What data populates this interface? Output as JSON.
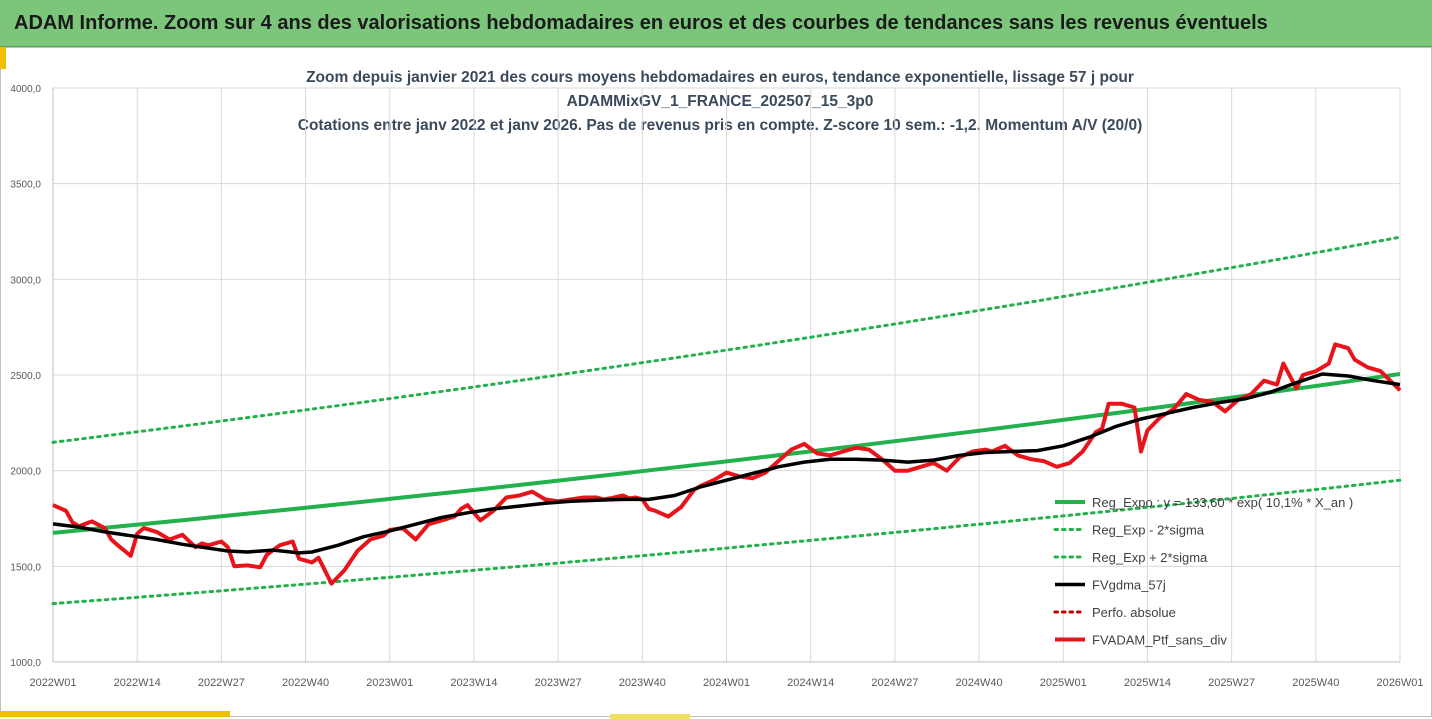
{
  "header": {
    "title": "ADAM Informe. Zoom sur 4 ans des valorisations hebdomadaires en euros et des courbes de tendances sans les revenus éventuels"
  },
  "chart_data": {
    "type": "line",
    "title_lines": [
      "Zoom depuis janvier 2021 des cours moyens hebdomadaires  en euros, tendance exponentielle, lissage 57 j pour",
      "ADAMMixGV_1_FRANCE_202507_15_3p0",
      "Cotations  entre janv 2022 et janv 2026. Pas de revenus pris en compte. Z-score 10 sem.: -1,2. Momentum A/V (20/0)"
    ],
    "ylim": [
      1000,
      4000
    ],
    "y_ticks": [
      "1000,0",
      "1500,0",
      "2000,0",
      "2500,0",
      "3000,0",
      "3500,0",
      "4000,0"
    ],
    "x_range": [
      0,
      208
    ],
    "x_ticks": [
      {
        "label": "2022W01",
        "week": 0
      },
      {
        "label": "2022W14",
        "week": 13
      },
      {
        "label": "2022W27",
        "week": 26
      },
      {
        "label": "2022W40",
        "week": 39
      },
      {
        "label": "2023W01",
        "week": 52
      },
      {
        "label": "2023W14",
        "week": 65
      },
      {
        "label": "2023W27",
        "week": 78
      },
      {
        "label": "2023W40",
        "week": 91
      },
      {
        "label": "2024W01",
        "week": 104
      },
      {
        "label": "2024W14",
        "week": 117
      },
      {
        "label": "2024W27",
        "week": 130
      },
      {
        "label": "2024W40",
        "week": 143
      },
      {
        "label": "2025W01",
        "week": 156
      },
      {
        "label": "2025W14",
        "week": 169
      },
      {
        "label": "2025W27",
        "week": 182
      },
      {
        "label": "2025W40",
        "week": 195
      },
      {
        "label": "2026W01",
        "week": 208
      }
    ],
    "colors": {
      "reg": "#22b14c",
      "band": "#22b14c",
      "fvgdma": "#000000",
      "perfo": "#c00000",
      "fvadam": "#e8141c",
      "grid": "#d9d9d9"
    },
    "series": [
      {
        "name": "Reg_Expo : y = 133,60 * exp( 10,1% *  X_an )",
        "style": "solid-thick",
        "color_key": "reg",
        "x": [
          0,
          208
        ],
        "values": [
          1675,
          2505
        ],
        "kind": "exp"
      },
      {
        "name": "Reg_Exp - 2*sigma",
        "style": "dotted",
        "color_key": "band",
        "x": [
          0,
          208
        ],
        "values": [
          1305,
          1950
        ],
        "kind": "exp"
      },
      {
        "name": "Reg_Exp + 2*sigma",
        "style": "dotted",
        "color_key": "band",
        "x": [
          0,
          208
        ],
        "values": [
          2148,
          3220
        ],
        "kind": "exp"
      },
      {
        "name": "FVgdma_57j",
        "style": "solid",
        "color_key": "fvgdma",
        "x": [
          0,
          4,
          8,
          12,
          16,
          20,
          24,
          27,
          30,
          34,
          38,
          40,
          44,
          48,
          52,
          56,
          60,
          64,
          68,
          72,
          76,
          80,
          84,
          88,
          92,
          96,
          100,
          104,
          108,
          112,
          116,
          120,
          124,
          128,
          132,
          136,
          140,
          144,
          148,
          152,
          156,
          160,
          164,
          168,
          172,
          176,
          180,
          184,
          188,
          192,
          196,
          200,
          204,
          208
        ],
        "values": [
          1722,
          1705,
          1680,
          1660,
          1640,
          1615,
          1595,
          1580,
          1575,
          1585,
          1570,
          1575,
          1610,
          1655,
          1685,
          1720,
          1755,
          1780,
          1800,
          1815,
          1830,
          1840,
          1845,
          1850,
          1850,
          1870,
          1915,
          1950,
          1985,
          2020,
          2045,
          2060,
          2060,
          2055,
          2045,
          2055,
          2080,
          2095,
          2100,
          2105,
          2130,
          2175,
          2230,
          2270,
          2300,
          2330,
          2355,
          2375,
          2410,
          2460,
          2505,
          2495,
          2470,
          2450
        ]
      },
      {
        "name": "Perfo. absolue",
        "style": "dotted",
        "color_key": "perfo",
        "x": [],
        "values": []
      },
      {
        "name": "FVADAM_Ptf_sans_div",
        "style": "solid-thick",
        "color_key": "fvadam",
        "x": [
          0,
          2,
          3,
          4,
          6,
          8,
          9,
          10,
          12,
          13,
          14,
          16,
          18,
          20,
          22,
          23,
          24,
          26,
          27,
          28,
          30,
          32,
          33,
          35,
          37,
          38,
          39,
          40,
          41,
          43,
          45,
          47,
          49,
          51,
          52,
          54,
          56,
          58,
          60,
          62,
          63,
          64,
          66,
          68,
          70,
          72,
          74,
          76,
          78,
          80,
          82,
          84,
          85,
          86,
          88,
          89,
          90,
          91,
          92,
          93,
          95,
          97,
          99,
          100,
          102,
          104,
          106,
          108,
          110,
          112,
          114,
          116,
          118,
          120,
          122,
          124,
          126,
          128,
          130,
          132,
          134,
          136,
          138,
          140,
          142,
          144,
          145,
          147,
          149,
          151,
          153,
          155,
          157,
          159,
          161,
          162,
          163,
          165,
          167,
          168,
          169,
          171,
          173,
          175,
          177,
          179,
          181,
          183,
          185,
          187,
          189,
          190,
          192,
          193,
          195,
          197,
          198,
          200,
          201,
          203,
          205,
          208
        ],
        "values": [
          1820,
          1790,
          1730,
          1710,
          1735,
          1700,
          1640,
          1610,
          1555,
          1670,
          1700,
          1680,
          1640,
          1665,
          1600,
          1620,
          1610,
          1630,
          1600,
          1500,
          1505,
          1495,
          1560,
          1610,
          1630,
          1540,
          1530,
          1520,
          1545,
          1410,
          1480,
          1580,
          1640,
          1660,
          1690,
          1700,
          1640,
          1720,
          1740,
          1760,
          1800,
          1820,
          1740,
          1790,
          1860,
          1870,
          1890,
          1850,
          1840,
          1850,
          1860,
          1860,
          1850,
          1855,
          1870,
          1855,
          1860,
          1850,
          1800,
          1790,
          1760,
          1810,
          1900,
          1920,
          1950,
          1990,
          1970,
          1960,
          1990,
          2050,
          2110,
          2140,
          2090,
          2080,
          2100,
          2120,
          2110,
          2060,
          2000,
          2000,
          2020,
          2040,
          2000,
          2070,
          2100,
          2110,
          2100,
          2130,
          2080,
          2060,
          2050,
          2020,
          2040,
          2100,
          2200,
          2220,
          2350,
          2350,
          2330,
          2100,
          2210,
          2280,
          2320,
          2400,
          2370,
          2360,
          2310,
          2370,
          2400,
          2470,
          2450,
          2560,
          2430,
          2500,
          2520,
          2560,
          2660,
          2640,
          2580,
          2540,
          2520,
          2420
        ]
      }
    ]
  }
}
